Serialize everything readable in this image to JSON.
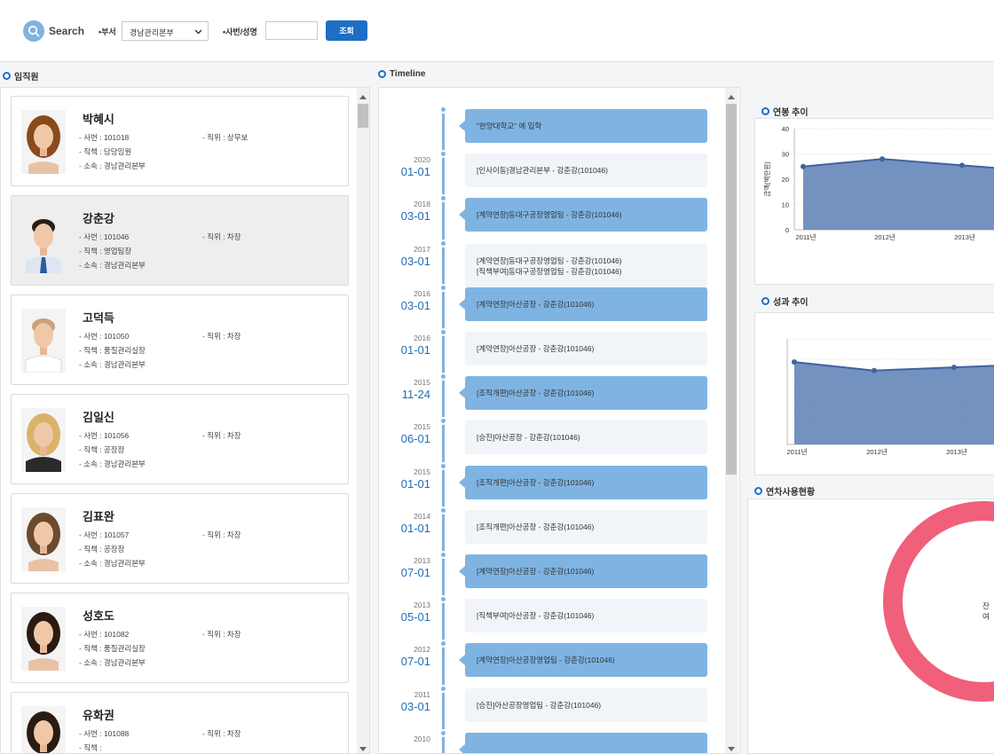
{
  "search": {
    "title": "Search",
    "dept_label": "•부서",
    "dept_value": "경남관리본부",
    "id_label": "•사번/성명",
    "id_value": "",
    "button": "조회"
  },
  "employees_section": {
    "title": "임직원"
  },
  "employees": [
    {
      "name": "박혜시",
      "id": "- 사번 : 101018",
      "position": "- 직위 : 상무보",
      "role": "- 직책 : 담당임원",
      "dept": "- 소속 : 경남관리본부",
      "selected": false,
      "photo": "woman-curly-hair"
    },
    {
      "name": "강춘강",
      "id": "- 사번 : 101046",
      "position": "- 직위 : 차장",
      "role": "- 직책 : 영업팀장",
      "dept": "- 소속 : 경남관리본부",
      "selected": true,
      "photo": "man-tie"
    },
    {
      "name": "고덕득",
      "id": "- 사번 : 101050",
      "position": "- 직위 : 차장",
      "role": "- 직책 : 품질관리실장",
      "dept": "- 소속 : 경남관리본부",
      "selected": false,
      "photo": "man-tshirt"
    },
    {
      "name": "김일신",
      "id": "- 사번 : 101056",
      "position": "- 직위 : 차장",
      "role": "- 직책 : 공장장",
      "dept": "- 소속 : 경남관리본부",
      "selected": false,
      "photo": "woman-blonde"
    },
    {
      "name": "김표완",
      "id": "- 사번 : 101057",
      "position": "- 직위 : 차장",
      "role": "- 직책 : 공장장",
      "dept": "- 소속 : 경남관리본부",
      "selected": false,
      "photo": "woman-short-hair"
    },
    {
      "name": "성호도",
      "id": "- 사번 : 101082",
      "position": "- 직위 : 차장",
      "role": "- 직책 : 품질관리실장",
      "dept": "- 소속 : 경남관리본부",
      "selected": false,
      "photo": "woman-dark-hair"
    },
    {
      "name": "유화권",
      "id": "- 사번 : 101088",
      "position": "- 직위 : 차장",
      "role": "- 직책 :",
      "dept": "",
      "selected": false,
      "photo": "woman-hands-face"
    }
  ],
  "timeline_section": {
    "title": "Timeline"
  },
  "timeline": [
    {
      "year": "",
      "date": "",
      "text": [
        "\"한양대학교\" 에 입학"
      ],
      "style": "dark"
    },
    {
      "year": "2020",
      "date": "01-01",
      "text": [
        "[인사이동]경남관리본부 - 강춘강(101046)"
      ],
      "style": "light"
    },
    {
      "year": "2018",
      "date": "03-01",
      "text": [
        "[계약연장]동대구공장영업팀 - 강춘강(101046)"
      ],
      "style": "dark"
    },
    {
      "year": "2017",
      "date": "03-01",
      "text": [
        "[계약연장]동대구공장영업팀 - 강춘강(101046)",
        "[직책부여]동대구공장영업팀 - 강춘강(101046)"
      ],
      "style": "light"
    },
    {
      "year": "2016",
      "date": "03-01",
      "text": [
        "[계약연장]아산공장 - 강춘강(101046)"
      ],
      "style": "dark"
    },
    {
      "year": "2016",
      "date": "01-01",
      "text": [
        "[계약연장]아산공장 - 강춘강(101046)"
      ],
      "style": "light"
    },
    {
      "year": "2015",
      "date": "11-24",
      "text": [
        "[조직개편]아산공장 - 강춘강(101046)"
      ],
      "style": "dark"
    },
    {
      "year": "2015",
      "date": "06-01",
      "text": [
        "[승진]아산공장 - 강춘강(101046)"
      ],
      "style": "light"
    },
    {
      "year": "2015",
      "date": "01-01",
      "text": [
        "[조직개편]아산공장 - 강춘강(101046)"
      ],
      "style": "dark"
    },
    {
      "year": "2014",
      "date": "01-01",
      "text": [
        "[조직개편]아산공장 - 강춘강(101046)"
      ],
      "style": "light"
    },
    {
      "year": "2013",
      "date": "07-01",
      "text": [
        "[계약연장]아산공장 - 강춘강(101046)"
      ],
      "style": "dark"
    },
    {
      "year": "2013",
      "date": "05-01",
      "text": [
        "[직책부여]아산공장 - 강춘강(101046)"
      ],
      "style": "light"
    },
    {
      "year": "2012",
      "date": "07-01",
      "text": [
        "[계약연장]아산공장영업팀 - 강춘강(101046)"
      ],
      "style": "dark"
    },
    {
      "year": "2011",
      "date": "03-01",
      "text": [
        "[승진]아산공장영업팀 - 강춘강(101046)"
      ],
      "style": "light"
    },
    {
      "year": "2010",
      "date": "",
      "text": [
        ""
      ],
      "style": "dark"
    }
  ],
  "salary_section": {
    "title": "연봉 추이"
  },
  "performance_section": {
    "title": "성과 추이"
  },
  "leave_section": {
    "title": "연차사용현황",
    "center_label": "잔여"
  },
  "colors": {
    "accent": "#1d6ec5",
    "timeline_box": "#7fb4e2",
    "area_fill": "#5b7fb5",
    "donut": "#f0607a"
  },
  "chart_data": [
    {
      "type": "area",
      "title": "연봉 추이",
      "ylabel": "금액(백만원)",
      "categories": [
        "2011년",
        "2012년",
        "2013년"
      ],
      "series": [
        {
          "values": [
            25,
            28,
            25.5
          ]
        }
      ],
      "yticks": [
        0,
        10,
        20,
        30,
        40
      ],
      "ylim": [
        0,
        40
      ],
      "grid": true
    },
    {
      "type": "area",
      "title": "성과 추이",
      "categories": [
        "2011년",
        "2012년",
        "2013년"
      ],
      "series": [
        {
          "values": [
            78,
            70,
            73
          ]
        }
      ],
      "ylim": [
        0,
        100
      ],
      "grid": true
    },
    {
      "type": "pie",
      "title": "연차사용현황",
      "labels": [
        "잔여"
      ],
      "values": [
        100
      ]
    }
  ]
}
